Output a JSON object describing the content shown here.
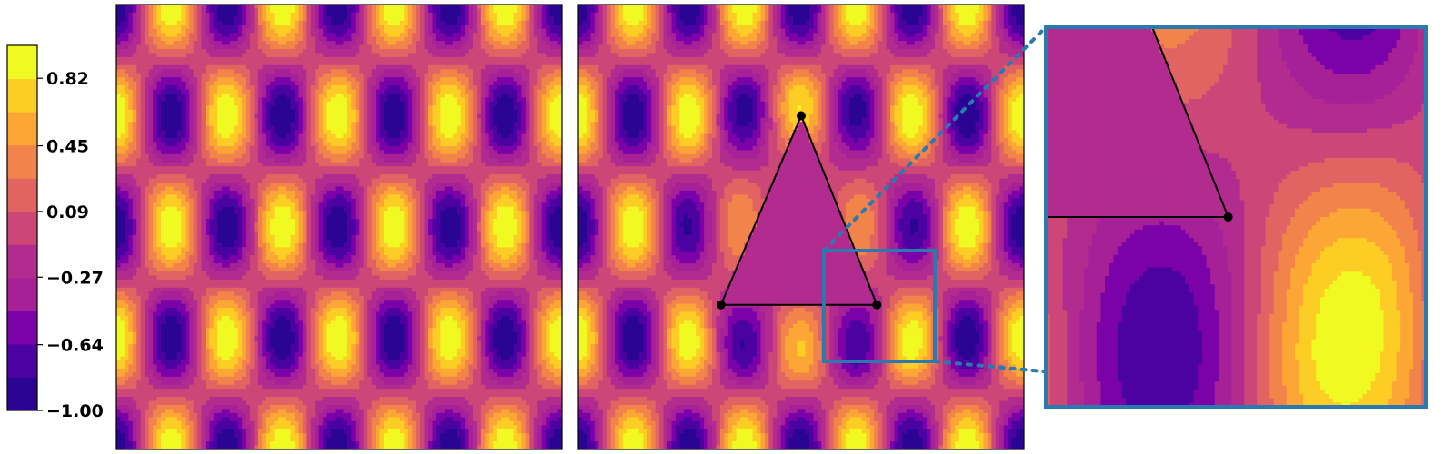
{
  "chart_data": [
    {
      "type": "heatmap",
      "subtype": "filled-contour",
      "panel": "left",
      "description": "Periodic field z = sin(a*x)*cos(b*y): 8 half-periods across, 4 half-periods down",
      "field": {
        "kx": 4,
        "ky": 2,
        "phase_x": 0.5
      },
      "colormap": "plasma",
      "colorbar": {
        "tick_labels": [
          "0.82",
          "0.45",
          "0.09",
          "−0.27",
          "−0.64",
          "−1.00"
        ],
        "tick_values": [
          0.82,
          0.45,
          0.09,
          -0.27,
          -0.64,
          -1.0
        ],
        "levels": 11,
        "range": [
          -1.0,
          1.0
        ]
      },
      "title": "",
      "xlabel": "",
      "ylabel": ""
    },
    {
      "type": "heatmap",
      "subtype": "filled-contour",
      "panel": "middle",
      "description": "Same field with a triangular hole (mesh region) where values are ~ -0.15",
      "triangle_vertices": [
        [
          0.5,
          0.75
        ],
        [
          0.32,
          0.325
        ],
        [
          0.67,
          0.325
        ]
      ],
      "triangle_value": -0.15,
      "zoom_box": {
        "x": [
          0.55,
          0.8
        ],
        "y": [
          0.2,
          0.45
        ]
      },
      "title": "",
      "xlabel": "",
      "ylabel": ""
    },
    {
      "type": "heatmap",
      "subtype": "filled-contour",
      "panel": "inset",
      "description": "Zoomed view of the region inside the zoom box of the middle panel",
      "title": "",
      "xlabel": "",
      "ylabel": ""
    }
  ],
  "colors": {
    "zoom_box": "#2a7ab0",
    "triangle_edge": "#000000",
    "plasma": [
      "#2a0593",
      "#4c02a1",
      "#7b02a8",
      "#a62098",
      "#b22b8f",
      "#cc4778",
      "#e16462",
      "#f2844b",
      "#fca636",
      "#fcce25",
      "#f0f921"
    ]
  }
}
